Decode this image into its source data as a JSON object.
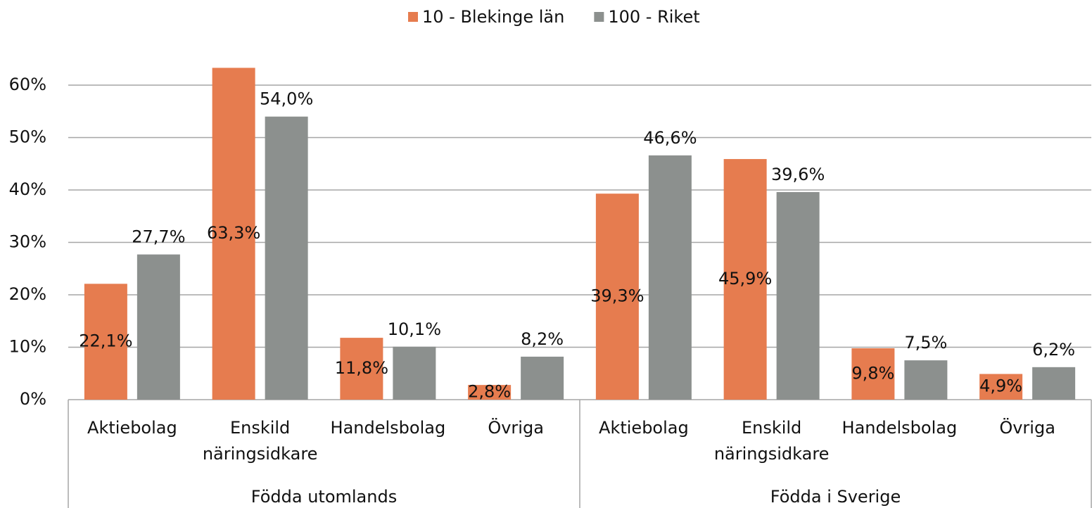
{
  "chart_data": {
    "type": "bar",
    "categories": [
      "Aktiebolag",
      "Enskild näringsidkare",
      "Handelsbolag",
      "Övriga",
      "Aktiebolag",
      "Enskild näringsidkare",
      "Handelsbolag",
      "Övriga"
    ],
    "category_groups": [
      "Födda utomlands",
      "Födda i Sverige"
    ],
    "series": [
      {
        "name": "10 - Blekinge län",
        "color": "#e67c4f",
        "values": [
          22.1,
          63.3,
          11.8,
          2.8,
          39.3,
          45.9,
          9.8,
          4.9
        ],
        "value_labels": [
          "22,1%",
          "63,3%",
          "11,8%",
          "2,8%",
          "39,3%",
          "45,9%",
          "9,8%",
          "4,9%"
        ]
      },
      {
        "name": "100 - Riket",
        "color": "#8c908e",
        "values": [
          27.7,
          54.0,
          10.1,
          8.2,
          46.6,
          39.6,
          7.5,
          6.2
        ],
        "value_labels": [
          "27,7%",
          "54,0%",
          "10,1%",
          "8,2%",
          "46,6%",
          "39,6%",
          "7,5%",
          "6,2%"
        ]
      }
    ],
    "ylim": [
      0,
      60
    ],
    "yticks": [
      {
        "value": 0,
        "label": "0%"
      },
      {
        "value": 10,
        "label": "10%"
      },
      {
        "value": 20,
        "label": "20%"
      },
      {
        "value": 30,
        "label": "30%"
      },
      {
        "value": 40,
        "label": "40%"
      },
      {
        "value": 50,
        "label": "50%"
      },
      {
        "value": 60,
        "label": "60%"
      }
    ],
    "grid": true,
    "legend": "top"
  }
}
